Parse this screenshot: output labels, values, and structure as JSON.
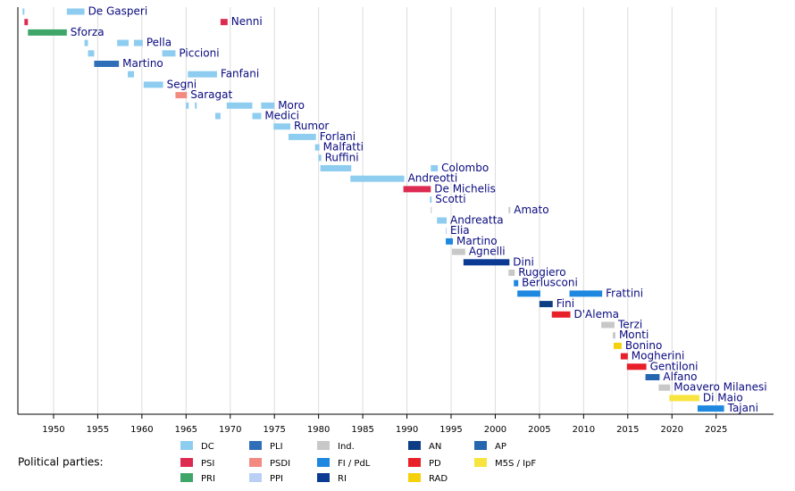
{
  "chart_data": {
    "type": "timeline",
    "xlim": [
      1945.96,
      2031.4
    ],
    "xticks": [
      1950,
      1955,
      1960,
      1965,
      1970,
      1975,
      1980,
      1985,
      1990,
      1995,
      2000,
      2005,
      2010,
      2015,
      2020,
      2025
    ],
    "grid": true,
    "legend_title": "Political parties:",
    "legend": [
      {
        "name": "DC",
        "color": "#8ecdf0"
      },
      {
        "name": "PSI",
        "color": "#dc2a50"
      },
      {
        "name": "PRI",
        "color": "#3fa66a"
      },
      {
        "name": "PLI",
        "color": "#2f6eb8"
      },
      {
        "name": "PSDI",
        "color": "#f28a82"
      },
      {
        "name": "PPI",
        "color": "#b9cff5"
      },
      {
        "name": "Ind.",
        "color": "#c8c8c8"
      },
      {
        "name": "FI / PdL",
        "color": "#1e88e0"
      },
      {
        "name": "RI",
        "color": "#0a3a94"
      },
      {
        "name": "AN",
        "color": "#0d3e84"
      },
      {
        "name": "PD",
        "color": "#e8202a"
      },
      {
        "name": "RAD",
        "color": "#f4d10a"
      },
      {
        "name": "AP",
        "color": "#2566b0"
      },
      {
        "name": "M5S / IpF",
        "color": "#f8e43e"
      }
    ],
    "ministers": [
      {
        "name": "De Gasperi",
        "party": "DC",
        "terms": [
          [
            1946.5,
            1946.7
          ],
          [
            1951.5,
            1953.5
          ]
        ]
      },
      {
        "name": "Nenni",
        "party": "PSI",
        "terms": [
          [
            1946.7,
            1947.1
          ],
          [
            1968.9,
            1969.7
          ]
        ]
      },
      {
        "name": "Sforza",
        "party": "PRI",
        "terms": [
          [
            1947.1,
            1951.5
          ]
        ]
      },
      {
        "name": "Pella",
        "party": "DC",
        "terms": [
          [
            1953.5,
            1953.9
          ],
          [
            1957.2,
            1958.5
          ],
          [
            1959.1,
            1960.1
          ]
        ]
      },
      {
        "name": "Piccioni",
        "party": "DC",
        "terms": [
          [
            1953.9,
            1954.6
          ],
          [
            1962.3,
            1963.8
          ]
        ]
      },
      {
        "name": "Martino",
        "party": "PLI",
        "terms": [
          [
            1954.6,
            1957.4
          ]
        ]
      },
      {
        "name": "Fanfani",
        "party": "DC",
        "terms": [
          [
            1958.4,
            1959.1
          ],
          [
            1965.2,
            1968.5
          ]
        ]
      },
      {
        "name": "Segni",
        "party": "DC",
        "terms": [
          [
            1960.2,
            1962.4
          ]
        ]
      },
      {
        "name": "Saragat",
        "party": "PSDI",
        "terms": [
          [
            1963.8,
            1965.1
          ]
        ]
      },
      {
        "name": "Moro",
        "party": "DC",
        "terms": [
          [
            1965.0,
            1965.3
          ],
          [
            1966.0,
            1966.2
          ],
          [
            1969.6,
            1972.5
          ],
          [
            1973.5,
            1975.0
          ]
        ]
      },
      {
        "name": "Medici",
        "party": "DC",
        "terms": [
          [
            1968.3,
            1968.9
          ],
          [
            1972.5,
            1973.5
          ]
        ]
      },
      {
        "name": "Rumor",
        "party": "DC",
        "terms": [
          [
            1974.9,
            1976.8
          ]
        ]
      },
      {
        "name": "Forlani",
        "party": "DC",
        "terms": [
          [
            1976.6,
            1979.7
          ]
        ]
      },
      {
        "name": "Malfatti",
        "party": "DC",
        "terms": [
          [
            1979.6,
            1980.1
          ]
        ]
      },
      {
        "name": "Ruffini",
        "party": "DC",
        "terms": [
          [
            1980.0,
            1980.3
          ]
        ]
      },
      {
        "name": "Colombo",
        "party": "DC",
        "terms": [
          [
            1980.2,
            1983.7
          ],
          [
            1992.7,
            1993.5
          ]
        ]
      },
      {
        "name": "Andreotti",
        "party": "DC",
        "terms": [
          [
            1983.6,
            1989.7
          ]
        ]
      },
      {
        "name": "De Michelis",
        "party": "PSI",
        "terms": [
          [
            1989.6,
            1992.7
          ]
        ]
      },
      {
        "name": "Scotti",
        "party": "DC",
        "terms": [
          [
            1992.6,
            1992.8
          ]
        ]
      },
      {
        "name": "Amato",
        "party": "Ind.",
        "terms": [
          [
            1992.7,
            1992.8
          ],
          [
            2001.5,
            2001.7
          ]
        ]
      },
      {
        "name": "Andreatta",
        "party": "DC",
        "terms": [
          [
            1993.4,
            1994.5
          ]
        ]
      },
      {
        "name": "Elia",
        "party": "PPI",
        "terms": [
          [
            1994.4,
            1994.5
          ]
        ]
      },
      {
        "name": "Martino",
        "party": "FI / PdL",
        "terms": [
          [
            1994.4,
            1995.2
          ]
        ]
      },
      {
        "name": "Agnelli",
        "party": "Ind.",
        "terms": [
          [
            1995.1,
            1996.6
          ]
        ]
      },
      {
        "name": "Dini",
        "party": "RI",
        "terms": [
          [
            1996.4,
            2001.6
          ]
        ]
      },
      {
        "name": "Ruggiero",
        "party": "Ind.",
        "terms": [
          [
            2001.5,
            2002.2
          ]
        ]
      },
      {
        "name": "Berlusconi",
        "party": "FI / PdL",
        "terms": [
          [
            2002.1,
            2002.6
          ]
        ]
      },
      {
        "name": "Frattini",
        "party": "FI / PdL",
        "terms": [
          [
            2002.5,
            2005.1
          ],
          [
            2008.4,
            2012.1
          ]
        ]
      },
      {
        "name": "Fini",
        "party": "AN",
        "terms": [
          [
            2005.0,
            2006.5
          ]
        ]
      },
      {
        "name": "D'Alema",
        "party": "PD",
        "terms": [
          [
            2006.4,
            2008.5
          ]
        ]
      },
      {
        "name": "Terzi",
        "party": "Ind.",
        "terms": [
          [
            2012.0,
            2013.5
          ]
        ]
      },
      {
        "name": "Monti",
        "party": "Ind.",
        "terms": [
          [
            2013.3,
            2013.6
          ]
        ]
      },
      {
        "name": "Bonino",
        "party": "RAD",
        "terms": [
          [
            2013.4,
            2014.3
          ]
        ]
      },
      {
        "name": "Mogherini",
        "party": "PD",
        "terms": [
          [
            2014.2,
            2015.0
          ]
        ]
      },
      {
        "name": "Gentiloni",
        "party": "PD",
        "terms": [
          [
            2014.9,
            2017.1
          ]
        ]
      },
      {
        "name": "Alfano",
        "party": "AP",
        "terms": [
          [
            2017.0,
            2018.6
          ]
        ]
      },
      {
        "name": "Moavero Milanesi",
        "party": "Ind.",
        "terms": [
          [
            2018.5,
            2019.8
          ]
        ]
      },
      {
        "name": "Di Maio",
        "party": "M5S / IpF",
        "terms": [
          [
            2019.7,
            2023.1
          ]
        ]
      },
      {
        "name": "Tajani",
        "party": "FI / PdL",
        "terms": [
          [
            2022.9,
            2025.9
          ]
        ]
      }
    ]
  }
}
